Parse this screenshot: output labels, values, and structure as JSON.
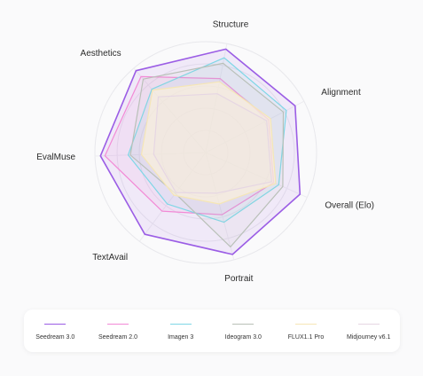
{
  "chart_data": {
    "type": "radar",
    "axes": [
      "Structure",
      "Alignment",
      "Overall (Elo)",
      "Portrait",
      "TextAvail",
      "EvalMuse",
      "Aesthetics"
    ],
    "rmax": 100,
    "grid": true,
    "legend_placement": "bottom",
    "series": [
      {
        "name": "Seedream 3.0",
        "color": "#9b5de5",
        "fill": "#9b5de5",
        "fill_opacity": 0.1,
        "values": [
          95,
          91,
          93,
          95,
          92,
          95,
          97
        ]
      },
      {
        "name": "Seedream 2.0",
        "color": "#f28ad6",
        "fill": "#f28ad6",
        "fill_opacity": 0.1,
        "values": [
          68,
          64,
          67,
          58,
          66,
          91,
          90
        ]
      },
      {
        "name": "Imagen 3",
        "color": "#7fd7e6",
        "fill": "#7fd7e6",
        "fill_opacity": 0.1,
        "values": [
          87,
          82,
          72,
          65,
          58,
          70,
          75
        ]
      },
      {
        "name": "Ideogram 3.0",
        "color": "#b9c0b8",
        "fill": "#b9c0b8",
        "fill_opacity": 0.08,
        "values": [
          82,
          79,
          76,
          88,
          46,
          68,
          87
        ]
      },
      {
        "name": "FLUX1.1 Pro",
        "color": "#f5e6b6",
        "fill": "#fbf1dc",
        "fill_opacity": 0.7,
        "values": [
          65,
          66,
          69,
          48,
          48,
          58,
          74
        ]
      },
      {
        "name": "Midjourney v6.1",
        "color": "#e6d6e3",
        "fill": "#e6d6e3",
        "fill_opacity": 0.1,
        "values": [
          54,
          62,
          65,
          38,
          45,
          47,
          66
        ]
      }
    ]
  }
}
